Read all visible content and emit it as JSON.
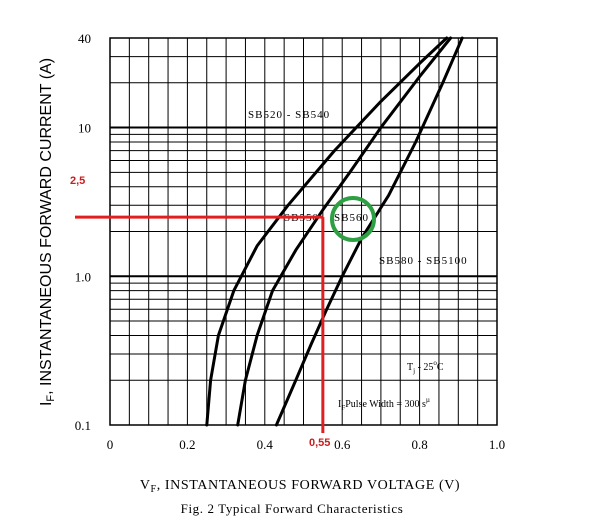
{
  "chart_data": {
    "type": "line",
    "title": "",
    "xlabel_main": "V",
    "xlabel_sub": "F",
    "xlabel_rest": ", INSTANTANEOUS FORWARD VOLTAGE (V)",
    "ylabel_main": "I",
    "ylabel_sub": "F",
    "ylabel_rest": ", INSTANTANEOUS FORWARD CURRENT (A)",
    "caption": "Fig. 2 Typical Forward Characteristics",
    "xlim": [
      0,
      1.0
    ],
    "ylim": [
      0.1,
      40
    ],
    "yscale": "log",
    "grid": true,
    "x_ticks": [
      {
        "value": 0,
        "label": "0"
      },
      {
        "value": 0.2,
        "label": "0.2"
      },
      {
        "value": 0.4,
        "label": "0.4"
      },
      {
        "value": 0.6,
        "label": "0.6"
      },
      {
        "value": 0.8,
        "label": "0.8"
      },
      {
        "value": 1.0,
        "label": "1.0"
      }
    ],
    "y_ticks": [
      {
        "value": 0.1,
        "label": "0.1"
      },
      {
        "value": 1.0,
        "label": "1.0"
      },
      {
        "value": 10,
        "label": "10"
      },
      {
        "value": 40,
        "label": "40"
      }
    ],
    "y_minor_ticks": [
      0.2,
      0.3,
      0.4,
      0.5,
      0.6,
      0.7,
      0.8,
      0.9,
      2,
      3,
      4,
      5,
      6,
      7,
      8,
      9,
      20,
      30
    ],
    "series": [
      {
        "label": "SB520 - SB540",
        "x": [
          0.25,
          0.26,
          0.28,
          0.32,
          0.38,
          0.46,
          0.58,
          0.7,
          0.8,
          0.87
        ],
        "y": [
          0.1,
          0.2,
          0.4,
          0.8,
          1.6,
          3.0,
          7.0,
          15.0,
          27.0,
          40.0
        ]
      },
      {
        "label": "SB550",
        "x": [
          0.33,
          0.35,
          0.38,
          0.42,
          0.48,
          0.55,
          0.62,
          0.7,
          0.8,
          0.88
        ],
        "y": [
          0.1,
          0.2,
          0.4,
          0.8,
          1.5,
          2.8,
          5.0,
          10.0,
          22.0,
          40.0
        ]
      },
      {
        "label": "SB560",
        "x": [
          0.43,
          0.48,
          0.52,
          0.56,
          0.6,
          0.65,
          0.72,
          0.79,
          0.86,
          0.91
        ],
        "y": [
          0.1,
          0.2,
          0.35,
          0.6,
          1.0,
          1.8,
          3.5,
          8.0,
          20.0,
          40.0
        ]
      }
    ],
    "labels": [
      {
        "text": "SB520 - SB540",
        "x": 0.39,
        "y": 13
      },
      {
        "text": "SB550",
        "x": 0.41,
        "y": 2.3
      },
      {
        "text": "SB560",
        "x": 0.56,
        "y": 2.3
      },
      {
        "text": "SB580 - SB5100",
        "x": 0.68,
        "y": 1.2
      },
      {
        "text": "Tj = 25°C",
        "x": 0.75,
        "y": 0.22
      },
      {
        "text": "IF Pulse Width = 300 µs",
        "x": 0.6,
        "y": 0.13
      }
    ],
    "reference_point": {
      "x": 0.55,
      "y": 2.5,
      "x_label": "0,55",
      "y_label": "2,5",
      "color": "#e02020"
    },
    "highlight": {
      "label": "SB560",
      "color": "#2ea043"
    }
  },
  "annotations": {
    "series_label_1": "SB520 - SB540",
    "series_label_2": "SB550",
    "series_label_3": "SB560",
    "series_label_4": "SB580 - SB5100",
    "tj_prefix": "T",
    "tj_sub": "j",
    "tj_rest": " - 25",
    "tj_sup": "o",
    "tj_unit": "C",
    "pulse_prefix": "I",
    "pulse_sub": "F",
    "pulse_rest": "Pulse Width = 300 s",
    "pulse_sup": "µ"
  }
}
